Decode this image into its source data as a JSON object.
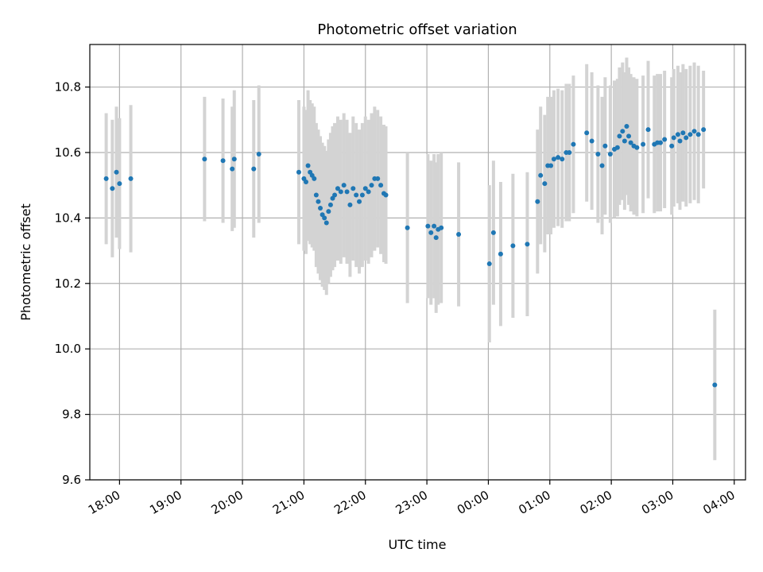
{
  "chart_data": {
    "type": "scatter",
    "title": "Photometric offset variation",
    "xlabel": "UTC time",
    "ylabel": "Photometric offset",
    "x_axis": {
      "kind": "time",
      "range": [
        "17:31",
        "04:11"
      ],
      "tick_labels": [
        "18:00",
        "19:00",
        "20:00",
        "21:00",
        "22:00",
        "23:00",
        "00:00",
        "01:00",
        "02:00",
        "03:00",
        "04:00"
      ]
    },
    "y_axis": {
      "range": [
        9.6,
        10.93
      ],
      "ticks": [
        9.6,
        9.8,
        10.0,
        10.2,
        10.4,
        10.6,
        10.8
      ],
      "tick_labels": [
        "9.6",
        "9.8",
        "10.0",
        "10.2",
        "10.4",
        "10.6",
        "10.8"
      ]
    },
    "grid": true,
    "colors": {
      "marker": "#1f77b4",
      "errorbar": "#d3d3d3",
      "grid": "#b0b0b0"
    },
    "series": [
      {
        "points": [
          {
            "x": "17:47",
            "y": 10.52,
            "err": 0.2
          },
          {
            "x": "17:53",
            "y": 10.49,
            "err": 0.21
          },
          {
            "x": "17:57",
            "y": 10.54,
            "err": 0.2
          },
          {
            "x": "18:00",
            "y": 10.505,
            "err": 0.2
          },
          {
            "x": "18:11",
            "y": 10.52,
            "err": 0.225
          },
          {
            "x": "19:23",
            "y": 10.58,
            "err": 0.19
          },
          {
            "x": "19:41",
            "y": 10.575,
            "err": 0.19
          },
          {
            "x": "19:50",
            "y": 10.55,
            "err": 0.19
          },
          {
            "x": "19:52",
            "y": 10.58,
            "err": 0.21
          },
          {
            "x": "20:11",
            "y": 10.55,
            "err": 0.21
          },
          {
            "x": "20:16",
            "y": 10.595,
            "err": 0.21
          },
          {
            "x": "20:55",
            "y": 10.54,
            "err": 0.22
          },
          {
            "x": "21:00",
            "y": 10.52,
            "err": 0.22
          },
          {
            "x": "21:02",
            "y": 10.51,
            "err": 0.22
          },
          {
            "x": "21:04",
            "y": 10.56,
            "err": 0.23
          },
          {
            "x": "21:06",
            "y": 10.54,
            "err": 0.22
          },
          {
            "x": "21:08",
            "y": 10.53,
            "err": 0.22
          },
          {
            "x": "21:10",
            "y": 10.52,
            "err": 0.22
          },
          {
            "x": "21:12",
            "y": 10.47,
            "err": 0.22
          },
          {
            "x": "21:14",
            "y": 10.45,
            "err": 0.22
          },
          {
            "x": "21:16",
            "y": 10.43,
            "err": 0.22
          },
          {
            "x": "21:18",
            "y": 10.41,
            "err": 0.22
          },
          {
            "x": "21:20",
            "y": 10.4,
            "err": 0.22
          },
          {
            "x": "21:22",
            "y": 10.385,
            "err": 0.22
          },
          {
            "x": "21:24",
            "y": 10.42,
            "err": 0.22
          },
          {
            "x": "21:26",
            "y": 10.44,
            "err": 0.22
          },
          {
            "x": "21:28",
            "y": 10.46,
            "err": 0.22
          },
          {
            "x": "21:30",
            "y": 10.47,
            "err": 0.22
          },
          {
            "x": "21:33",
            "y": 10.49,
            "err": 0.22
          },
          {
            "x": "21:36",
            "y": 10.48,
            "err": 0.22
          },
          {
            "x": "21:39",
            "y": 10.5,
            "err": 0.22
          },
          {
            "x": "21:42",
            "y": 10.48,
            "err": 0.22
          },
          {
            "x": "21:45",
            "y": 10.44,
            "err": 0.22
          },
          {
            "x": "21:48",
            "y": 10.49,
            "err": 0.22
          },
          {
            "x": "21:51",
            "y": 10.47,
            "err": 0.22
          },
          {
            "x": "21:54",
            "y": 10.45,
            "err": 0.22
          },
          {
            "x": "21:57",
            "y": 10.47,
            "err": 0.22
          },
          {
            "x": "22:00",
            "y": 10.49,
            "err": 0.22
          },
          {
            "x": "22:03",
            "y": 10.48,
            "err": 0.22
          },
          {
            "x": "22:06",
            "y": 10.5,
            "err": 0.22
          },
          {
            "x": "22:09",
            "y": 10.52,
            "err": 0.22
          },
          {
            "x": "22:12",
            "y": 10.52,
            "err": 0.21
          },
          {
            "x": "22:15",
            "y": 10.5,
            "err": 0.21
          },
          {
            "x": "22:18",
            "y": 10.475,
            "err": 0.21
          },
          {
            "x": "22:20",
            "y": 10.47,
            "err": 0.21
          },
          {
            "x": "22:41",
            "y": 10.37,
            "err": 0.23
          },
          {
            "x": "23:01",
            "y": 10.375,
            "err": 0.22
          },
          {
            "x": "23:04",
            "y": 10.355,
            "err": 0.22
          },
          {
            "x": "23:07",
            "y": 10.375,
            "err": 0.22
          },
          {
            "x": "23:09",
            "y": 10.34,
            "err": 0.23
          },
          {
            "x": "23:11",
            "y": 10.365,
            "err": 0.23
          },
          {
            "x": "23:14",
            "y": 10.37,
            "err": 0.23
          },
          {
            "x": "23:31",
            "y": 10.35,
            "err": 0.22
          },
          {
            "x": "00:01",
            "y": 10.26,
            "err": 0.24
          },
          {
            "x": "00:05",
            "y": 10.355,
            "err": 0.22
          },
          {
            "x": "00:12",
            "y": 10.29,
            "err": 0.22
          },
          {
            "x": "00:24",
            "y": 10.315,
            "err": 0.22
          },
          {
            "x": "00:38",
            "y": 10.32,
            "err": 0.22
          },
          {
            "x": "00:48",
            "y": 10.45,
            "err": 0.22
          },
          {
            "x": "00:51",
            "y": 10.53,
            "err": 0.21
          },
          {
            "x": "00:55",
            "y": 10.505,
            "err": 0.21
          },
          {
            "x": "00:58",
            "y": 10.56,
            "err": 0.21
          },
          {
            "x": "01:01",
            "y": 10.56,
            "err": 0.21
          },
          {
            "x": "01:04",
            "y": 10.58,
            "err": 0.21
          },
          {
            "x": "01:08",
            "y": 10.585,
            "err": 0.21
          },
          {
            "x": "01:12",
            "y": 10.58,
            "err": 0.21
          },
          {
            "x": "01:16",
            "y": 10.6,
            "err": 0.21
          },
          {
            "x": "01:19",
            "y": 10.6,
            "err": 0.21
          },
          {
            "x": "01:23",
            "y": 10.625,
            "err": 0.21
          },
          {
            "x": "01:36",
            "y": 10.66,
            "err": 0.21
          },
          {
            "x": "01:41",
            "y": 10.635,
            "err": 0.21
          },
          {
            "x": "01:47",
            "y": 10.595,
            "err": 0.21
          },
          {
            "x": "01:51",
            "y": 10.56,
            "err": 0.21
          },
          {
            "x": "01:54",
            "y": 10.62,
            "err": 0.21
          },
          {
            "x": "01:59",
            "y": 10.595,
            "err": 0.21
          },
          {
            "x": "02:03",
            "y": 10.61,
            "err": 0.21
          },
          {
            "x": "02:06",
            "y": 10.615,
            "err": 0.21
          },
          {
            "x": "02:08",
            "y": 10.65,
            "err": 0.21
          },
          {
            "x": "02:11",
            "y": 10.665,
            "err": 0.21
          },
          {
            "x": "02:13",
            "y": 10.635,
            "err": 0.21
          },
          {
            "x": "02:15",
            "y": 10.68,
            "err": 0.21
          },
          {
            "x": "02:17",
            "y": 10.65,
            "err": 0.21
          },
          {
            "x": "02:19",
            "y": 10.63,
            "err": 0.21
          },
          {
            "x": "02:22",
            "y": 10.62,
            "err": 0.21
          },
          {
            "x": "02:25",
            "y": 10.615,
            "err": 0.21
          },
          {
            "x": "02:31",
            "y": 10.625,
            "err": 0.21
          },
          {
            "x": "02:36",
            "y": 10.67,
            "err": 0.21
          },
          {
            "x": "02:42",
            "y": 10.625,
            "err": 0.21
          },
          {
            "x": "02:45",
            "y": 10.63,
            "err": 0.21
          },
          {
            "x": "02:48",
            "y": 10.63,
            "err": 0.21
          },
          {
            "x": "02:52",
            "y": 10.64,
            "err": 0.21
          },
          {
            "x": "02:59",
            "y": 10.62,
            "err": 0.21
          },
          {
            "x": "03:01",
            "y": 10.645,
            "err": 0.21
          },
          {
            "x": "03:05",
            "y": 10.655,
            "err": 0.21
          },
          {
            "x": "03:07",
            "y": 10.635,
            "err": 0.21
          },
          {
            "x": "03:10",
            "y": 10.66,
            "err": 0.21
          },
          {
            "x": "03:13",
            "y": 10.645,
            "err": 0.21
          },
          {
            "x": "03:17",
            "y": 10.655,
            "err": 0.21
          },
          {
            "x": "03:21",
            "y": 10.665,
            "err": 0.21
          },
          {
            "x": "03:25",
            "y": 10.655,
            "err": 0.21
          },
          {
            "x": "03:30",
            "y": 10.67,
            "err": 0.18
          },
          {
            "x": "03:41",
            "y": 9.89,
            "err": 0.23
          }
        ]
      }
    ]
  }
}
